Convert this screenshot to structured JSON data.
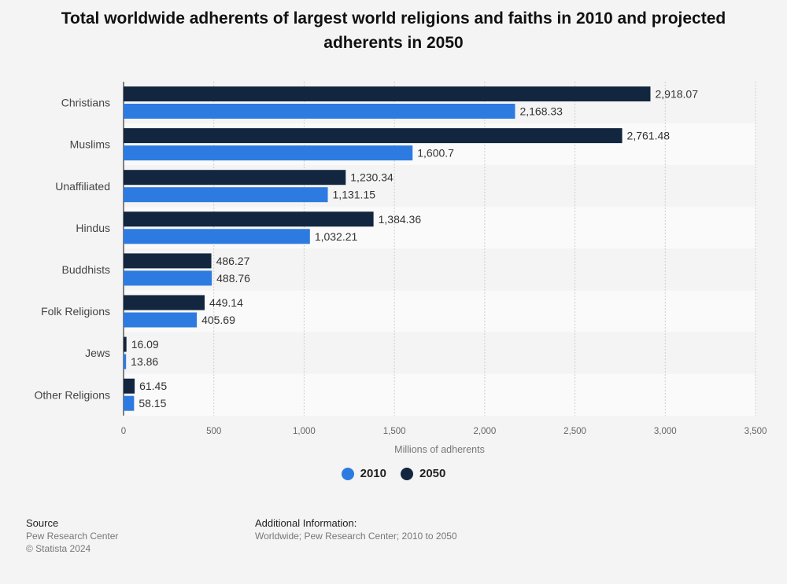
{
  "title": "Total worldwide adherents of largest world religions and faiths in 2010 and projected adherents in 2050",
  "chart_data": {
    "type": "bar",
    "orientation": "horizontal",
    "categories": [
      "Christians",
      "Muslims",
      "Unaffiliated",
      "Hindus",
      "Buddhists",
      "Folk Religions",
      "Jews",
      "Other Religions"
    ],
    "series": [
      {
        "name": "2050",
        "color": "#12263f",
        "values": [
          2918.07,
          2761.48,
          1230.34,
          1384.36,
          486.27,
          449.14,
          16.09,
          61.45
        ],
        "labels": [
          "2,918.07",
          "2,761.48",
          "1,230.34",
          "1,384.36",
          "486.27",
          "449.14",
          "16.09",
          "61.45"
        ]
      },
      {
        "name": "2010",
        "color": "#2d7be0",
        "values": [
          2168.33,
          1600.7,
          1131.15,
          1032.21,
          488.76,
          405.69,
          13.86,
          58.15
        ],
        "labels": [
          "2,168.33",
          "1,600.7",
          "1,131.15",
          "1,032.21",
          "488.76",
          "405.69",
          "13.86",
          "58.15"
        ]
      }
    ],
    "xlabel": "Millions of adherents",
    "xlim": [
      0,
      3500
    ],
    "ticks": [
      0,
      500,
      1000,
      1500,
      2000,
      2500,
      3000,
      3500
    ],
    "tick_labels": [
      "0",
      "500",
      "1,000",
      "1,500",
      "2,000",
      "2,500",
      "3,000",
      "3,500"
    ],
    "grid": true,
    "legend_position": "bottom"
  },
  "legend": [
    {
      "label": "2010",
      "color": "#2d7be0"
    },
    {
      "label": "2050",
      "color": "#12263f"
    }
  ],
  "footer": {
    "source_heading": "Source",
    "source_lines": [
      "Pew Research Center",
      "© Statista 2024"
    ],
    "info_heading": "Additional Information:",
    "info_text": "Worldwide; Pew Research Center; 2010 to 2050"
  }
}
